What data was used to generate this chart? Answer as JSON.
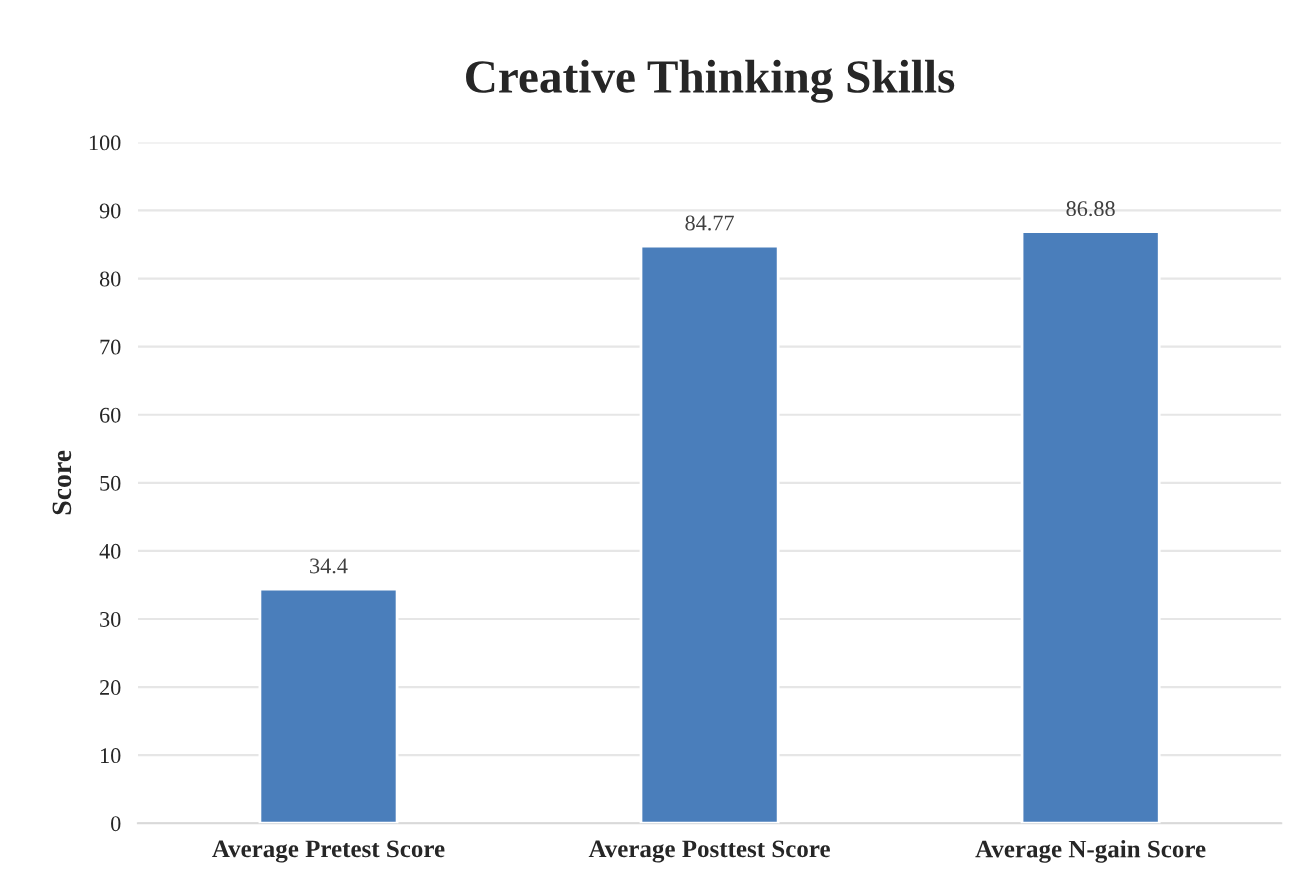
{
  "chart_data": {
    "type": "bar",
    "title": "Creative Thinking Skills",
    "ylabel": "Score",
    "categories": [
      "Average Pretest Score",
      "Average Posttest Score",
      "Average N-gain Score"
    ],
    "values": [
      34.4,
      84.77,
      86.88
    ],
    "color": "#4a7ebb",
    "ylim": [
      0,
      100
    ],
    "yticks": [
      0,
      10,
      20,
      30,
      40,
      50,
      60,
      70,
      80,
      90,
      100
    ],
    "grid": "y",
    "data_labels": true
  }
}
